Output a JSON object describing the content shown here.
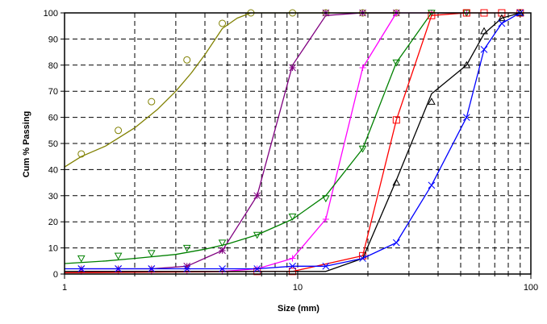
{
  "chart_data": {
    "type": "scatter",
    "title": "",
    "xlabel": "Size (mm)",
    "ylabel": "Cum % Passing",
    "xscale": "log",
    "xlim": [
      1,
      100
    ],
    "ylim": [
      0,
      100
    ],
    "x_ticks": [
      "1",
      "10",
      "100"
    ],
    "y_ticks": [
      "0",
      "10",
      "20",
      "30",
      "40",
      "50",
      "60",
      "70",
      "80",
      "90",
      "100"
    ],
    "grid": "dashed major and minor gridlines",
    "legend": "none",
    "series": [
      {
        "color": "#808000",
        "marker": "circle",
        "points": [
          [
            1.18,
            46
          ],
          [
            1.7,
            55
          ],
          [
            2.36,
            66
          ],
          [
            3.35,
            82
          ],
          [
            4.75,
            96
          ],
          [
            6.3,
            100
          ],
          [
            9.5,
            100
          ],
          [
            13.2,
            100
          ],
          [
            19.0,
            100
          ],
          [
            26.5,
            100
          ]
        ],
        "fit": [
          [
            1.0,
            41
          ],
          [
            1.18,
            45
          ],
          [
            1.5,
            49
          ],
          [
            2.0,
            56
          ],
          [
            2.5,
            63
          ],
          [
            3.0,
            70
          ],
          [
            3.5,
            77
          ],
          [
            4.0,
            84
          ],
          [
            4.75,
            94
          ],
          [
            5.5,
            98
          ],
          [
            6.3,
            100
          ],
          [
            26.5,
            100
          ]
        ]
      },
      {
        "color": "#800080",
        "marker": "asterisk",
        "points": [
          [
            1.18,
            2
          ],
          [
            1.7,
            2
          ],
          [
            2.36,
            2
          ],
          [
            3.35,
            3
          ],
          [
            4.75,
            9
          ],
          [
            6.7,
            30
          ],
          [
            9.5,
            79
          ],
          [
            13.2,
            100
          ],
          [
            19.0,
            100
          ],
          [
            26.5,
            100
          ]
        ],
        "line": [
          [
            1.18,
            2
          ],
          [
            1.7,
            2
          ],
          [
            2.36,
            2
          ],
          [
            3.35,
            3
          ],
          [
            4.75,
            9
          ],
          [
            6.7,
            30
          ],
          [
            9.5,
            80
          ],
          [
            13.2,
            99
          ],
          [
            19.0,
            100
          ],
          [
            26.5,
            100
          ]
        ]
      },
      {
        "color": "#ff00ff",
        "marker": "plus",
        "points": [
          [
            1.18,
            1
          ],
          [
            1.7,
            1
          ],
          [
            2.36,
            1
          ],
          [
            3.35,
            1
          ],
          [
            4.75,
            1
          ],
          [
            6.7,
            2
          ],
          [
            9.5,
            6
          ],
          [
            13.2,
            21
          ],
          [
            19.0,
            79
          ],
          [
            26.5,
            100
          ],
          [
            37.5,
            100
          ],
          [
            53.0,
            100
          ]
        ],
        "line": [
          [
            1.18,
            1
          ],
          [
            1.7,
            1
          ],
          [
            2.36,
            1
          ],
          [
            3.35,
            1
          ],
          [
            4.75,
            1
          ],
          [
            6.7,
            2
          ],
          [
            9.5,
            6
          ],
          [
            13.2,
            21
          ],
          [
            19.0,
            79
          ],
          [
            26.5,
            100
          ],
          [
            53.0,
            100
          ]
        ]
      },
      {
        "color": "#008000",
        "marker": "triangle-down",
        "points": [
          [
            1.18,
            6
          ],
          [
            1.7,
            7
          ],
          [
            2.36,
            8
          ],
          [
            3.35,
            10
          ],
          [
            4.75,
            12
          ],
          [
            6.7,
            15
          ],
          [
            9.5,
            22
          ],
          [
            13.2,
            29
          ],
          [
            19.0,
            48
          ],
          [
            26.5,
            81
          ],
          [
            37.5,
            100
          ],
          [
            53.0,
            100
          ]
        ],
        "fit": [
          [
            1.0,
            4
          ],
          [
            1.5,
            5
          ],
          [
            2.0,
            6
          ],
          [
            3.0,
            7.5
          ],
          [
            4.0,
            9.5
          ],
          [
            5.0,
            11.5
          ],
          [
            6.7,
            15
          ],
          [
            9.5,
            21
          ],
          [
            13.2,
            30
          ],
          [
            19.0,
            48
          ],
          [
            26.5,
            81
          ],
          [
            37.5,
            100
          ],
          [
            53.0,
            100
          ]
        ]
      },
      {
        "color": "#ff0000",
        "marker": "square",
        "points": [
          [
            6.7,
            1
          ],
          [
            9.5,
            1
          ],
          [
            19.0,
            7
          ],
          [
            26.5,
            59
          ],
          [
            37.5,
            99
          ],
          [
            53.0,
            100
          ],
          [
            63.0,
            100
          ],
          [
            75.0,
            100
          ],
          [
            90.0,
            100
          ]
        ],
        "line": [
          [
            1.0,
            0.5
          ],
          [
            6.7,
            1
          ],
          [
            9.5,
            1
          ],
          [
            19.0,
            7
          ],
          [
            26.5,
            59
          ],
          [
            37.5,
            99
          ],
          [
            53.0,
            100
          ],
          [
            90.0,
            100
          ]
        ]
      },
      {
        "color": "#000000",
        "marker": "triangle-up",
        "points": [
          [
            26.5,
            35
          ],
          [
            37.5,
            66
          ],
          [
            53.0,
            80
          ],
          [
            63.0,
            93
          ],
          [
            75.0,
            98
          ],
          [
            90.0,
            100
          ]
        ],
        "line": [
          [
            1.0,
            1
          ],
          [
            13.2,
            1
          ],
          [
            19.0,
            6
          ],
          [
            26.5,
            36
          ],
          [
            37.5,
            69
          ],
          [
            53.0,
            80
          ],
          [
            63.0,
            92
          ],
          [
            75.0,
            98
          ],
          [
            90.0,
            100
          ]
        ]
      },
      {
        "color": "#0000ff",
        "marker": "x",
        "points": [
          [
            1.18,
            2
          ],
          [
            1.7,
            2
          ],
          [
            2.36,
            2
          ],
          [
            3.35,
            2
          ],
          [
            4.75,
            2
          ],
          [
            6.7,
            2
          ],
          [
            9.5,
            3
          ],
          [
            13.2,
            3
          ],
          [
            19.0,
            6
          ],
          [
            26.5,
            12
          ],
          [
            37.5,
            34
          ],
          [
            53.0,
            60
          ],
          [
            63.0,
            86
          ],
          [
            75.0,
            96
          ],
          [
            90.0,
            100
          ]
        ],
        "line": [
          [
            1.0,
            2
          ],
          [
            1.18,
            2
          ],
          [
            4.75,
            2
          ],
          [
            6.7,
            2
          ],
          [
            9.5,
            3
          ],
          [
            13.2,
            3
          ],
          [
            19.0,
            6
          ],
          [
            26.5,
            12
          ],
          [
            37.5,
            34
          ],
          [
            53.0,
            60
          ],
          [
            63.0,
            86
          ],
          [
            75.0,
            96
          ],
          [
            90.0,
            100
          ]
        ]
      }
    ]
  }
}
